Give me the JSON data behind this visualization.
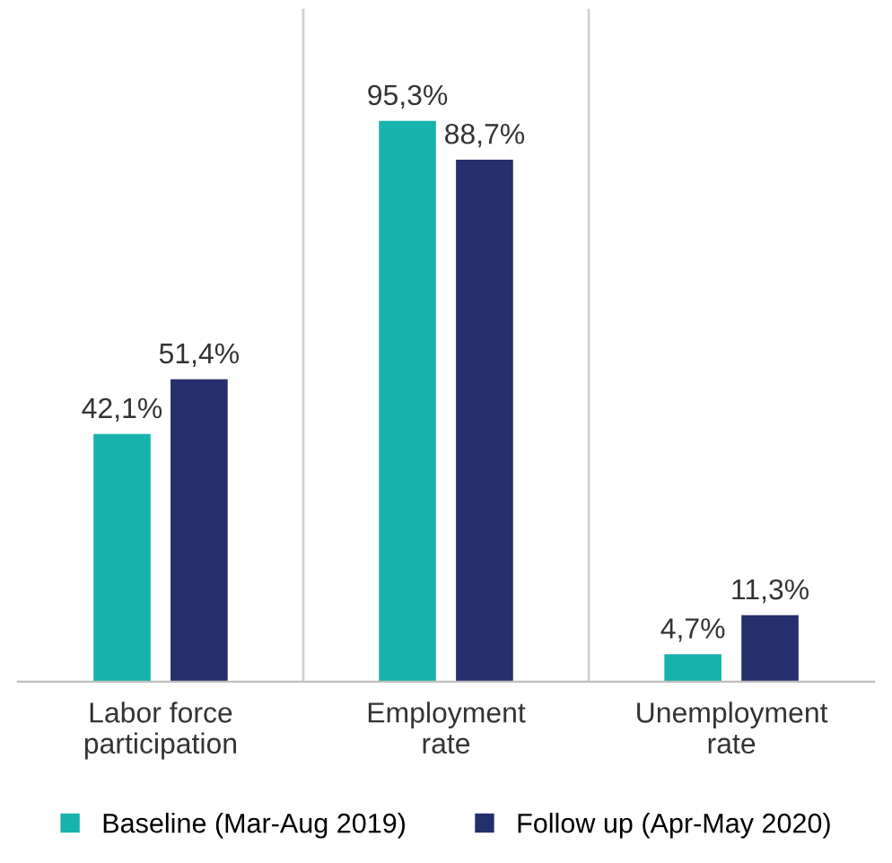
{
  "chart_data": {
    "type": "bar",
    "categories": [
      "Labor force\nparticipation",
      "Employment\nrate",
      "Unemployment\nrate"
    ],
    "series": [
      {
        "name": "Baseline (Mar-Aug 2019)",
        "color": "#17b3ac",
        "values": [
          42.1,
          95.3,
          4.7
        ],
        "value_labels": [
          "42,1%",
          "95,3%",
          "4,7%"
        ]
      },
      {
        "name": "Follow up (Apr-May 2020)",
        "color": "#252f6b",
        "values": [
          51.4,
          88.7,
          11.3
        ],
        "value_labels": [
          "51,4%",
          "88,7%",
          "11,3%"
        ]
      }
    ],
    "legend": "bottom",
    "grid": false
  }
}
